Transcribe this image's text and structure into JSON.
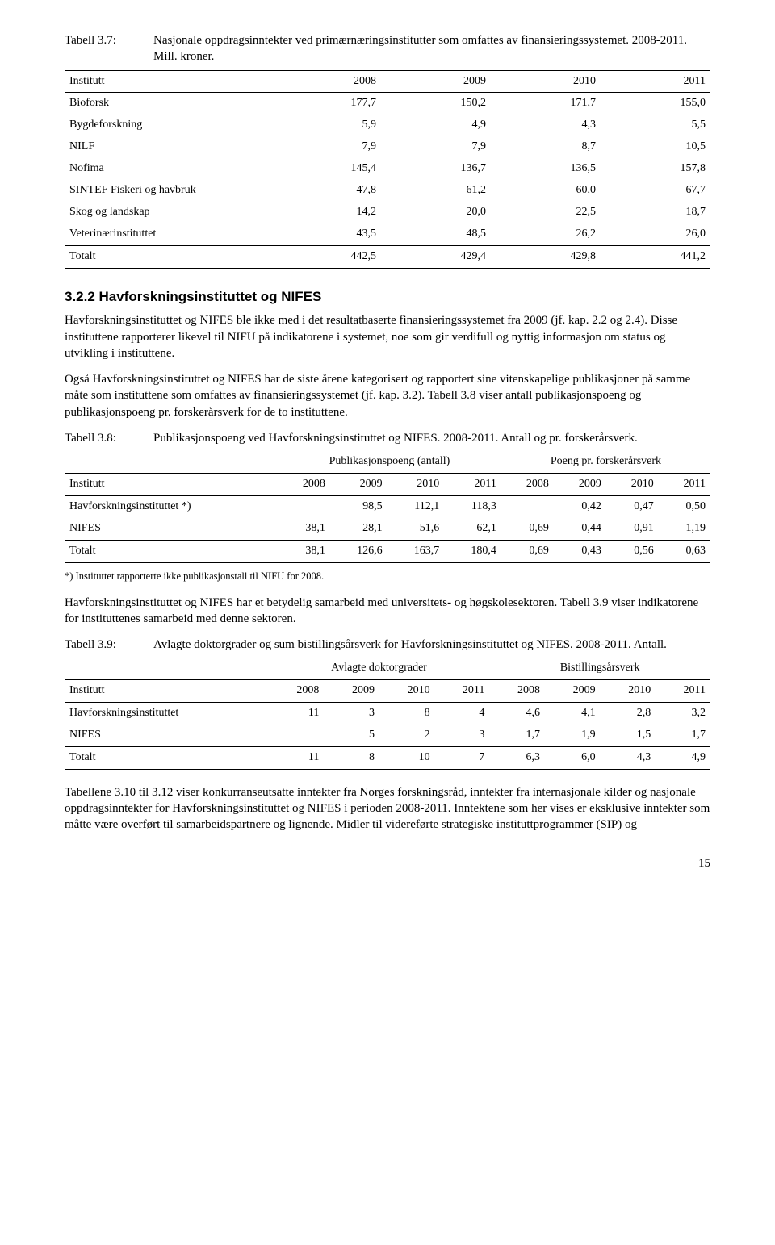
{
  "table37": {
    "label": "Tabell 3.7:",
    "caption": "Nasjonale oppdragsinntekter ved primærnæringsinstitutter som omfattes av finansieringssystemet. 2008-2011. Mill. kroner.",
    "col_header": "Institutt",
    "years": [
      "2008",
      "2009",
      "2010",
      "2011"
    ],
    "rows": [
      {
        "name": "Bioforsk",
        "v": [
          "177,7",
          "150,2",
          "171,7",
          "155,0"
        ]
      },
      {
        "name": "Bygdeforskning",
        "v": [
          "5,9",
          "4,9",
          "4,3",
          "5,5"
        ]
      },
      {
        "name": "NILF",
        "v": [
          "7,9",
          "7,9",
          "8,7",
          "10,5"
        ]
      },
      {
        "name": "Nofima",
        "v": [
          "145,4",
          "136,7",
          "136,5",
          "157,8"
        ]
      },
      {
        "name": "SINTEF Fiskeri og havbruk",
        "v": [
          "47,8",
          "61,2",
          "60,0",
          "67,7"
        ]
      },
      {
        "name": "Skog og landskap",
        "v": [
          "14,2",
          "20,0",
          "22,5",
          "18,7"
        ]
      },
      {
        "name": "Veterinærinstituttet",
        "v": [
          "43,5",
          "48,5",
          "26,2",
          "26,0"
        ]
      }
    ],
    "total": {
      "name": "Totalt",
      "v": [
        "442,5",
        "429,4",
        "429,8",
        "441,2"
      ]
    }
  },
  "section322": {
    "heading": "3.2.2 Havforskningsinstituttet og NIFES",
    "p1": "Havforskningsinstituttet og NIFES ble ikke med i det resultatbaserte finansieringssystemet fra 2009 (jf. kap. 2.2 og 2.4). Disse instituttene rapporterer likevel til NIFU på indikatorene i systemet, noe som gir verdifull og nyttig informasjon om status og utvikling i instituttene.",
    "p2": "Også Havforskningsinstituttet og NIFES har de siste årene kategorisert og rapportert sine vitenskapelige publikasjoner på samme måte som instituttene som omfattes av finansieringssystemet (jf. kap. 3.2). Tabell 3.8 viser antall publikasjonspoeng og publikasjonspoeng pr. forskerårsverk for de to instituttene."
  },
  "table38": {
    "label": "Tabell 3.8:",
    "caption": "Publikasjonspoeng ved Havforskningsinstituttet og NIFES. 2008-2011. Antall og pr. forskerårsverk.",
    "group_a": "Publikasjonspoeng (antall)",
    "group_b": "Poeng pr. forskerårsverk",
    "col_header": "Institutt",
    "years": [
      "2008",
      "2009",
      "2010",
      "2011",
      "2008",
      "2009",
      "2010",
      "2011"
    ],
    "rows": [
      {
        "name": "Havforskningsinstituttet *)",
        "v": [
          "",
          "98,5",
          "112,1",
          "118,3",
          "",
          "0,42",
          "0,47",
          "0,50"
        ]
      },
      {
        "name": "NIFES",
        "v": [
          "38,1",
          "28,1",
          "51,6",
          "62,1",
          "0,69",
          "0,44",
          "0,91",
          "1,19"
        ]
      }
    ],
    "total": {
      "name": "Totalt",
      "v": [
        "38,1",
        "126,6",
        "163,7",
        "180,4",
        "0,69",
        "0,43",
        "0,56",
        "0,63"
      ]
    },
    "footnote": "*) Instituttet rapporterte ikke publikasjonstall til NIFU for 2008."
  },
  "mid_paras": {
    "p1": "Havforskningsinstituttet og NIFES har et betydelig samarbeid med universitets- og høgskolesektoren. Tabell 3.9 viser indikatorene for instituttenes samarbeid med denne sektoren."
  },
  "table39": {
    "label": "Tabell 3.9:",
    "caption": "Avlagte doktorgrader og sum bistillingsårsverk for Havforskningsinstituttet og NIFES. 2008-2011. Antall.",
    "group_a": "Avlagte doktorgrader",
    "group_b": "Bistillingsårsverk",
    "col_header": "Institutt",
    "years": [
      "2008",
      "2009",
      "2010",
      "2011",
      "2008",
      "2009",
      "2010",
      "2011"
    ],
    "rows": [
      {
        "name": "Havforskningsinstituttet",
        "v": [
          "11",
          "3",
          "8",
          "4",
          "4,6",
          "4,1",
          "2,8",
          "3,2"
        ]
      },
      {
        "name": "NIFES",
        "v": [
          "",
          "5",
          "2",
          "3",
          "1,7",
          "1,9",
          "1,5",
          "1,7"
        ]
      }
    ],
    "total": {
      "name": "Totalt",
      "v": [
        "11",
        "8",
        "10",
        "7",
        "6,3",
        "6,0",
        "4,3",
        "4,9"
      ]
    }
  },
  "tail_para": "Tabellene 3.10 til 3.12 viser konkurranseutsatte inntekter fra Norges forskningsråd, inntekter fra internasjonale kilder og nasjonale oppdragsinntekter for Havforskningsinstituttet og NIFES i perioden 2008-2011. Inntektene som her vises er eksklusive inntekter som måtte være overført til samarbeidspartnere og lignende. Midler til videreførte strategiske instituttprogrammer (SIP) og",
  "page_number": "15"
}
